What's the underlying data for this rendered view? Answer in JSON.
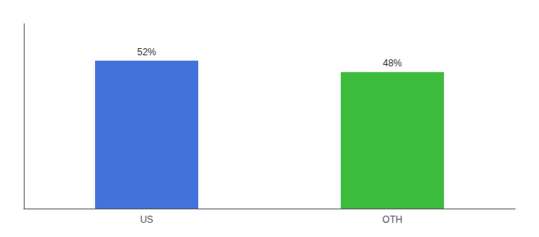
{
  "chart_data": {
    "type": "bar",
    "categories": [
      "US",
      "OTH"
    ],
    "values": [
      52,
      48
    ],
    "value_labels": [
      "52%",
      "48%"
    ],
    "colors": [
      "#4472db",
      "#3dbb3d"
    ],
    "ylim": [
      0,
      65
    ],
    "grid": false,
    "data_labels": true,
    "tick_labels": "x"
  }
}
